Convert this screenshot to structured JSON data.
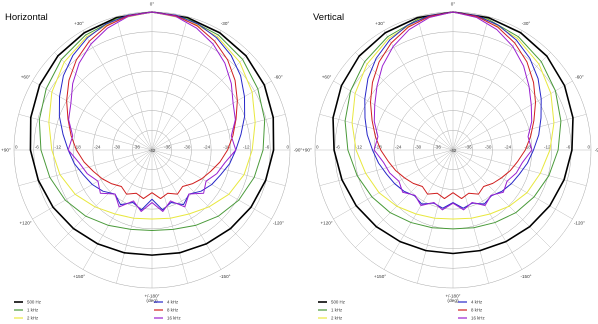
{
  "chart_data": [
    {
      "type": "polar",
      "title": "Horizontal",
      "unit_label": "(deg)",
      "ring_labels": [
        "0",
        "-6",
        "-12",
        "-18",
        "-24",
        "-30",
        "-36",
        "-42"
      ],
      "angle_labels": [
        "0°",
        "-30°",
        "-60°",
        "-90°",
        "-120°",
        "-150°",
        "+/-180°",
        "+150°",
        "+120°",
        "+90°",
        "+60°",
        "+30°"
      ],
      "rlim": [
        -42,
        0
      ],
      "grid": true,
      "legend_position": "bottom",
      "series": [
        {
          "name": "500 Hz",
          "color": "#000000",
          "angles": [
            0,
            15,
            30,
            45,
            60,
            75,
            90,
            105,
            120,
            135,
            150,
            165,
            180,
            195,
            210,
            225,
            240,
            255,
            270,
            285,
            300,
            315,
            330,
            345
          ],
          "values": [
            0,
            -0.3,
            -0.8,
            -1.5,
            -2.5,
            -3.8,
            -5,
            -6.2,
            -7.2,
            -8.2,
            -9,
            -9.6,
            -10,
            -9.6,
            -9,
            -8.2,
            -7.2,
            -6.2,
            -5,
            -3.8,
            -2.5,
            -1.5,
            -0.8,
            -0.3
          ]
        },
        {
          "name": "1 kHz",
          "color": "#4a9a3a",
          "angles": [
            0,
            15,
            30,
            45,
            60,
            75,
            90,
            105,
            120,
            135,
            150,
            165,
            180,
            195,
            210,
            225,
            240,
            255,
            270,
            285,
            300,
            315,
            330,
            345
          ],
          "values": [
            0,
            -0.6,
            -1.6,
            -3,
            -4.8,
            -6.5,
            -8.2,
            -9.8,
            -11.5,
            -13.5,
            -15.5,
            -17,
            -17.5,
            -17,
            -15.5,
            -13.5,
            -11.5,
            -9.8,
            -8.2,
            -6.5,
            -4.8,
            -3,
            -1.6,
            -0.6
          ]
        },
        {
          "name": "2 kHz",
          "color": "#e8e840",
          "angles": [
            0,
            15,
            30,
            45,
            60,
            75,
            90,
            105,
            120,
            135,
            150,
            165,
            180,
            195,
            210,
            225,
            240,
            255,
            270,
            285,
            300,
            315,
            330,
            345
          ],
          "values": [
            0,
            -0.8,
            -2.2,
            -4.2,
            -6.8,
            -9.5,
            -11.5,
            -13,
            -15,
            -17.5,
            -19.5,
            -20.5,
            -21,
            -20.5,
            -19.5,
            -17.5,
            -15,
            -13,
            -11.5,
            -9.5,
            -6.8,
            -4.2,
            -2.2,
            -0.8
          ]
        },
        {
          "name": "4 kHz",
          "color": "#2828c8",
          "angles": [
            0,
            10,
            20,
            30,
            40,
            50,
            60,
            70,
            80,
            90,
            100,
            110,
            120,
            130,
            140,
            150,
            160,
            170,
            180,
            190,
            200,
            210,
            220,
            230,
            240,
            250,
            260,
            270,
            280,
            290,
            300,
            310,
            320,
            330,
            340,
            350
          ],
          "values": [
            0,
            -0.3,
            -1.2,
            -2.6,
            -4.5,
            -6.8,
            -9.5,
            -12,
            -14.5,
            -16.5,
            -18,
            -19.8,
            -21,
            -22.5,
            -24.5,
            -22.8,
            -25,
            -23.5,
            -27,
            -23.5,
            -25,
            -22.8,
            -24.5,
            -22.5,
            -21,
            -19.8,
            -18,
            -16.5,
            -14.5,
            -12,
            -9.5,
            -6.8,
            -4.5,
            -2.6,
            -1.2,
            -0.3
          ]
        },
        {
          "name": "8 kHz",
          "color": "#d02020",
          "angles": [
            0,
            10,
            20,
            30,
            40,
            50,
            60,
            70,
            80,
            90,
            100,
            110,
            120,
            130,
            140,
            150,
            160,
            170,
            180,
            190,
            200,
            210,
            220,
            230,
            240,
            250,
            260,
            270,
            280,
            290,
            300,
            310,
            320,
            330,
            340,
            350
          ],
          "values": [
            0,
            -0.5,
            -1.8,
            -3.8,
            -6.2,
            -9,
            -12,
            -14.8,
            -17,
            -19,
            -21,
            -23,
            -24.5,
            -26,
            -27.5,
            -26.5,
            -28,
            -27,
            -29,
            -27,
            -28,
            -26.5,
            -27.5,
            -26,
            -24.5,
            -23,
            -21,
            -19,
            -17,
            -14.8,
            -12,
            -9,
            -6.2,
            -3.8,
            -1.8,
            -0.5
          ]
        },
        {
          "name": "16 kHz",
          "color": "#9a20d0",
          "angles": [
            0,
            10,
            20,
            30,
            40,
            50,
            60,
            70,
            80,
            90,
            100,
            110,
            120,
            130,
            140,
            150,
            160,
            170,
            180,
            190,
            200,
            210,
            220,
            230,
            240,
            250,
            260,
            270,
            280,
            290,
            300,
            310,
            320,
            330,
            340,
            350
          ],
          "values": [
            0,
            -0.7,
            -2.5,
            -4.8,
            -7.5,
            -10.5,
            -13.5,
            -15,
            -17.5,
            -16.5,
            -19.5,
            -21,
            -23,
            -21.5,
            -24.5,
            -22,
            -25.5,
            -23,
            -26,
            -23,
            -25.5,
            -22,
            -24.5,
            -21.5,
            -23,
            -21,
            -19.5,
            -16.5,
            -17.5,
            -15,
            -13.5,
            -10.5,
            -7.5,
            -4.8,
            -2.5,
            -0.7
          ]
        }
      ]
    },
    {
      "type": "polar",
      "title": "Vertical",
      "unit_label": "(deg)",
      "ring_labels": [
        "0",
        "-6",
        "-12",
        "-18",
        "-24",
        "-30",
        "-36",
        "-42"
      ],
      "angle_labels": [
        "0°",
        "-30°",
        "-60°",
        "-90°",
        "-120°",
        "-150°",
        "+/-180°",
        "+150°",
        "+120°",
        "+90°",
        "+60°",
        "+30°"
      ],
      "rlim": [
        -42,
        0
      ],
      "grid": true,
      "legend_position": "bottom",
      "series": [
        {
          "name": "500 Hz",
          "color": "#000000",
          "angles": [
            0,
            15,
            30,
            45,
            60,
            75,
            90,
            105,
            120,
            135,
            150,
            165,
            180,
            195,
            210,
            225,
            240,
            255,
            270,
            285,
            300,
            315,
            330,
            345
          ],
          "values": [
            0,
            -0.3,
            -0.8,
            -1.6,
            -2.8,
            -4.2,
            -5.8,
            -7,
            -8,
            -9,
            -9.8,
            -10.3,
            -10.5,
            -10.3,
            -9.8,
            -9,
            -8,
            -7,
            -5.8,
            -4.2,
            -2.8,
            -1.6,
            -0.8,
            -0.3
          ]
        },
        {
          "name": "1 kHz",
          "color": "#4a9a3a",
          "angles": [
            0,
            15,
            30,
            45,
            60,
            75,
            90,
            105,
            120,
            135,
            150,
            165,
            180,
            195,
            210,
            225,
            240,
            255,
            270,
            285,
            300,
            315,
            330,
            345
          ],
          "values": [
            0,
            -0.8,
            -2.2,
            -4,
            -6,
            -8,
            -10,
            -11.8,
            -13.5,
            -15,
            -16.5,
            -17.5,
            -18,
            -17.5,
            -16.5,
            -15,
            -13.5,
            -11.8,
            -10,
            -8,
            -6,
            -4,
            -2.2,
            -0.8
          ]
        },
        {
          "name": "2 kHz",
          "color": "#e8e840",
          "angles": [
            0,
            15,
            30,
            45,
            60,
            75,
            90,
            105,
            120,
            135,
            150,
            165,
            180,
            195,
            210,
            225,
            240,
            255,
            270,
            285,
            300,
            315,
            330,
            345
          ],
          "values": [
            0,
            -1,
            -2.8,
            -5,
            -7.6,
            -10.2,
            -12.5,
            -14.5,
            -16,
            -17.8,
            -19.5,
            -20.5,
            -21,
            -20.5,
            -19.5,
            -17.8,
            -16,
            -14.5,
            -12.5,
            -10.2,
            -7.6,
            -5,
            -2.8,
            -1
          ]
        },
        {
          "name": "4 kHz",
          "color": "#2828c8",
          "angles": [
            0,
            10,
            20,
            30,
            40,
            50,
            60,
            70,
            80,
            90,
            100,
            110,
            120,
            130,
            140,
            150,
            160,
            170,
            180,
            190,
            200,
            210,
            220,
            230,
            240,
            250,
            260,
            270,
            280,
            290,
            300,
            310,
            320,
            330,
            340,
            350
          ],
          "values": [
            0,
            -0.5,
            -1.6,
            -3.4,
            -5.6,
            -8.2,
            -11,
            -13.5,
            -15.5,
            -17.5,
            -19,
            -20.5,
            -21.5,
            -22.5,
            -23.8,
            -23,
            -24.8,
            -24,
            -26,
            -24,
            -24.8,
            -23,
            -23.8,
            -22.5,
            -21.5,
            -20.5,
            -19,
            -17.5,
            -15.5,
            -13.5,
            -11,
            -8.2,
            -5.6,
            -3.4,
            -1.6,
            -0.5
          ]
        },
        {
          "name": "8 kHz",
          "color": "#d02020",
          "angles": [
            0,
            10,
            20,
            30,
            40,
            50,
            60,
            70,
            80,
            90,
            100,
            110,
            120,
            130,
            140,
            150,
            160,
            170,
            180,
            190,
            200,
            210,
            220,
            230,
            240,
            250,
            260,
            270,
            280,
            290,
            300,
            310,
            320,
            330,
            340,
            350
          ],
          "values": [
            0,
            -0.7,
            -2.2,
            -4.4,
            -7,
            -10,
            -13,
            -15.8,
            -18,
            -20,
            -22,
            -23.5,
            -25,
            -26.2,
            -27.5,
            -26.5,
            -28,
            -27,
            -29,
            -27,
            -28,
            -26.5,
            -27.5,
            -26.2,
            -25,
            -23.5,
            -22,
            -20,
            -18,
            -15.8,
            -13,
            -10,
            -7,
            -4.4,
            -2.2,
            -0.7
          ]
        },
        {
          "name": "16 kHz",
          "color": "#9a20d0",
          "angles": [
            0,
            10,
            20,
            30,
            40,
            50,
            60,
            70,
            80,
            90,
            100,
            110,
            120,
            130,
            140,
            150,
            160,
            170,
            180,
            190,
            200,
            210,
            220,
            230,
            240,
            250,
            260,
            270,
            280,
            290,
            300,
            310,
            320,
            330,
            340,
            350
          ],
          "values": [
            0,
            -1,
            -3,
            -5.6,
            -8.6,
            -11.8,
            -14.5,
            -16.5,
            -18.8,
            -18,
            -20.5,
            -21.5,
            -23,
            -22,
            -24,
            -22.5,
            -25,
            -23.5,
            -25.8,
            -23.5,
            -25,
            -22.5,
            -24,
            -22,
            -23,
            -21.5,
            -20.5,
            -18,
            -18.8,
            -16.5,
            -14.5,
            -11.8,
            -8.6,
            -5.6,
            -3,
            -1
          ]
        }
      ]
    }
  ]
}
